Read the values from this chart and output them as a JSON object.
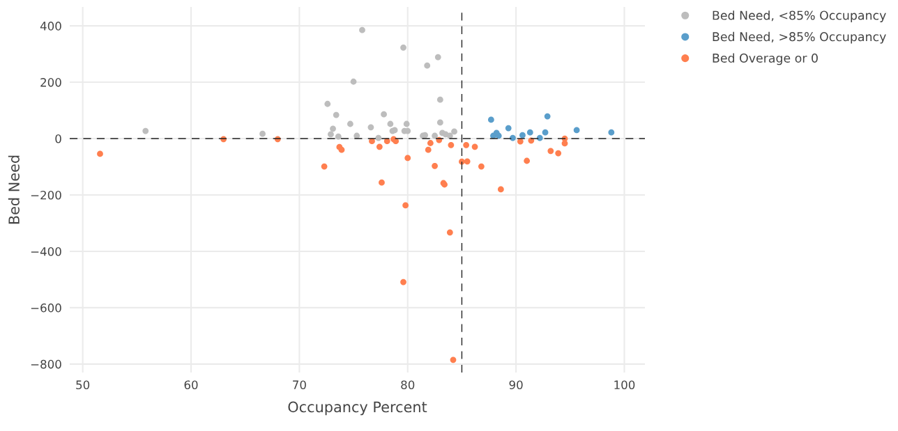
{
  "chart_data": {
    "type": "scatter",
    "xlabel": "Occupancy Percent",
    "ylabel": "Bed Need",
    "xlim": [
      48.8,
      101.9
    ],
    "ylim": [
      -830,
      467
    ],
    "xticks": [
      50,
      60,
      70,
      80,
      90,
      100
    ],
    "yticks": [
      {
        "value": -800,
        "label": "−800"
      },
      {
        "value": -600,
        "label": "−600"
      },
      {
        "value": -400,
        "label": "−400"
      },
      {
        "value": -200,
        "label": "−200"
      },
      0,
      200,
      400
    ],
    "grid": true,
    "legend": "top right",
    "marker": "circle",
    "ref_lines": [
      {
        "axis": "x",
        "value": 85,
        "color": "#222222",
        "line_style": "dashed"
      },
      {
        "axis": "y",
        "value": 0,
        "color": "#222222",
        "line_style": "dashed"
      }
    ],
    "series": [
      {
        "name": "Bed Need, <85% Occupancy",
        "color": "#bdbdbd",
        "x": [
          55.8,
          66.6,
          72.6,
          72.9,
          73.1,
          73.4,
          73.6,
          75.8,
          75.0,
          74.7,
          75.3,
          76.6,
          77.3,
          77.8,
          78.4,
          78.6,
          78.8,
          79.6,
          79.7,
          79.9,
          80.0,
          81.4,
          81.6,
          81.8,
          82.5,
          82.8,
          83.0,
          83.0,
          83.2,
          83.5,
          83.9,
          84.3
        ],
        "values": [
          27,
          17,
          123,
          15,
          35,
          84,
          7,
          385,
          202,
          52,
          10,
          40,
          2,
          86,
          52,
          27,
          30,
          323,
          27,
          52,
          27,
          10,
          12,
          259,
          10,
          289,
          138,
          57,
          20,
          15,
          10,
          25
        ]
      },
      {
        "name": "Bed Need, >85% Occupancy",
        "color": "#5a9ecb",
        "x": [
          87.7,
          87.9,
          88.2,
          88.4,
          89.3,
          89.7,
          90.6,
          91.3,
          92.2,
          92.7,
          92.9,
          95.6,
          98.8
        ],
        "values": [
          67,
          10,
          20,
          10,
          37,
          2,
          12,
          22,
          2,
          22,
          79,
          30,
          22
        ]
      },
      {
        "name": "Bed Overage or 0",
        "color": "#ff7f4f",
        "x": [
          51.6,
          63.0,
          68.0,
          72.3,
          73.7,
          73.9,
          76.7,
          77.4,
          77.6,
          78.1,
          78.7,
          78.9,
          79.6,
          79.8,
          80.0,
          81.9,
          82.1,
          82.5,
          82.9,
          83.3,
          83.4,
          83.9,
          84.0,
          84.2,
          85.0,
          85.4,
          85.5,
          86.2,
          86.8,
          88.6,
          90.4,
          91.0,
          91.4,
          93.2,
          93.9,
          94.5,
          94.5
        ],
        "values": [
          -54,
          -2,
          -2,
          -99,
          -30,
          -40,
          -9,
          -29,
          -156,
          -9,
          -2,
          -9,
          -509,
          -237,
          -69,
          -40,
          -16,
          -97,
          -5,
          -158,
          -163,
          -333,
          -23,
          -785,
          -82,
          -23,
          -81,
          -29,
          -99,
          -180,
          -10,
          -79,
          -7,
          -44,
          -52,
          0,
          -17
        ]
      }
    ]
  }
}
